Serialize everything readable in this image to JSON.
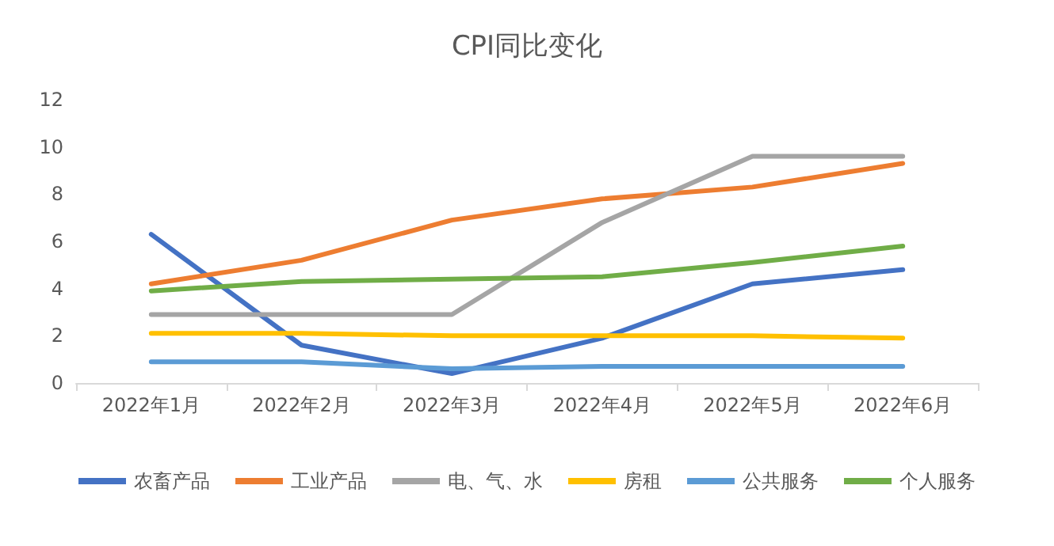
{
  "chart_data": {
    "type": "line",
    "title": "CPI同比变化",
    "categories": [
      "2022年1月",
      "2022年2月",
      "2022年3月",
      "2022年4月",
      "2022年5月",
      "2022年6月"
    ],
    "series": [
      {
        "name": "农畜产品",
        "color": "#4472c4",
        "values": [
          6.3,
          1.6,
          0.4,
          1.9,
          4.2,
          4.8
        ]
      },
      {
        "name": "工业产品",
        "color": "#ed7d31",
        "values": [
          4.2,
          5.2,
          6.9,
          7.8,
          8.3,
          9.3
        ]
      },
      {
        "name": "电、气、水",
        "color": "#a5a5a5",
        "values": [
          2.9,
          2.9,
          2.9,
          6.8,
          9.6,
          9.6
        ]
      },
      {
        "name": "房租",
        "color": "#ffc000",
        "values": [
          2.1,
          2.1,
          2.0,
          2.0,
          2.0,
          1.9
        ]
      },
      {
        "name": "公共服务",
        "color": "#5b9bd5",
        "values": [
          0.9,
          0.9,
          0.6,
          0.7,
          0.7,
          0.7
        ]
      },
      {
        "name": "个人服务",
        "color": "#70ad47",
        "values": [
          3.9,
          4.3,
          4.4,
          4.5,
          5.1,
          5.8
        ]
      }
    ],
    "ylim": [
      0,
      12
    ],
    "yticks": [
      0,
      2,
      4,
      6,
      8,
      10,
      12
    ],
    "grid": false,
    "legend": "bottom",
    "marker": "none",
    "line_style": "solid"
  }
}
